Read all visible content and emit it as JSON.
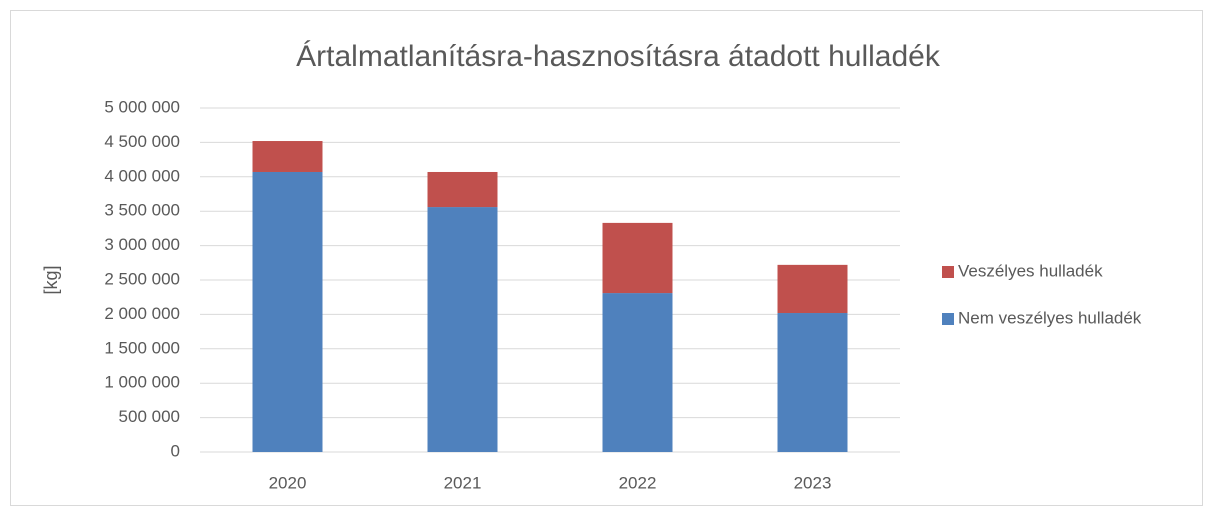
{
  "chart_data": {
    "type": "stacked_bar",
    "title": "Ártalmatlanításra-hasznosításra átadott hulladék",
    "y_label": "[kg]",
    "categories": [
      "2020",
      "2021",
      "2022",
      "2023"
    ],
    "series": [
      {
        "name": "Nem veszélyes hulladék",
        "color": "#4f81bd",
        "values": [
          4070000,
          3560000,
          2310000,
          2020000
        ]
      },
      {
        "name": "Veszélyes hulladék",
        "color": "#c0504d",
        "values": [
          450000,
          510000,
          1020000,
          700000
        ]
      }
    ],
    "ylim": [
      0,
      5000000
    ],
    "yticks": [
      0,
      {
        "value": 500000,
        "label": "500 000"
      },
      {
        "value": 1000000,
        "label": "1 000 000"
      },
      {
        "value": 1500000,
        "label": "1 500 000"
      },
      {
        "value": 2000000,
        "label": "2 000 000"
      },
      {
        "value": 2500000,
        "label": "2 500 000"
      },
      {
        "value": 3000000,
        "label": "3 000 000"
      },
      {
        "value": 3500000,
        "label": "3 500 000"
      },
      {
        "value": 4000000,
        "label": "4 000 000"
      },
      {
        "value": 4500000,
        "label": "4 500 000"
      },
      {
        "value": 5000000,
        "label": "5 000 000"
      }
    ],
    "grid": true,
    "legend": "right"
  }
}
